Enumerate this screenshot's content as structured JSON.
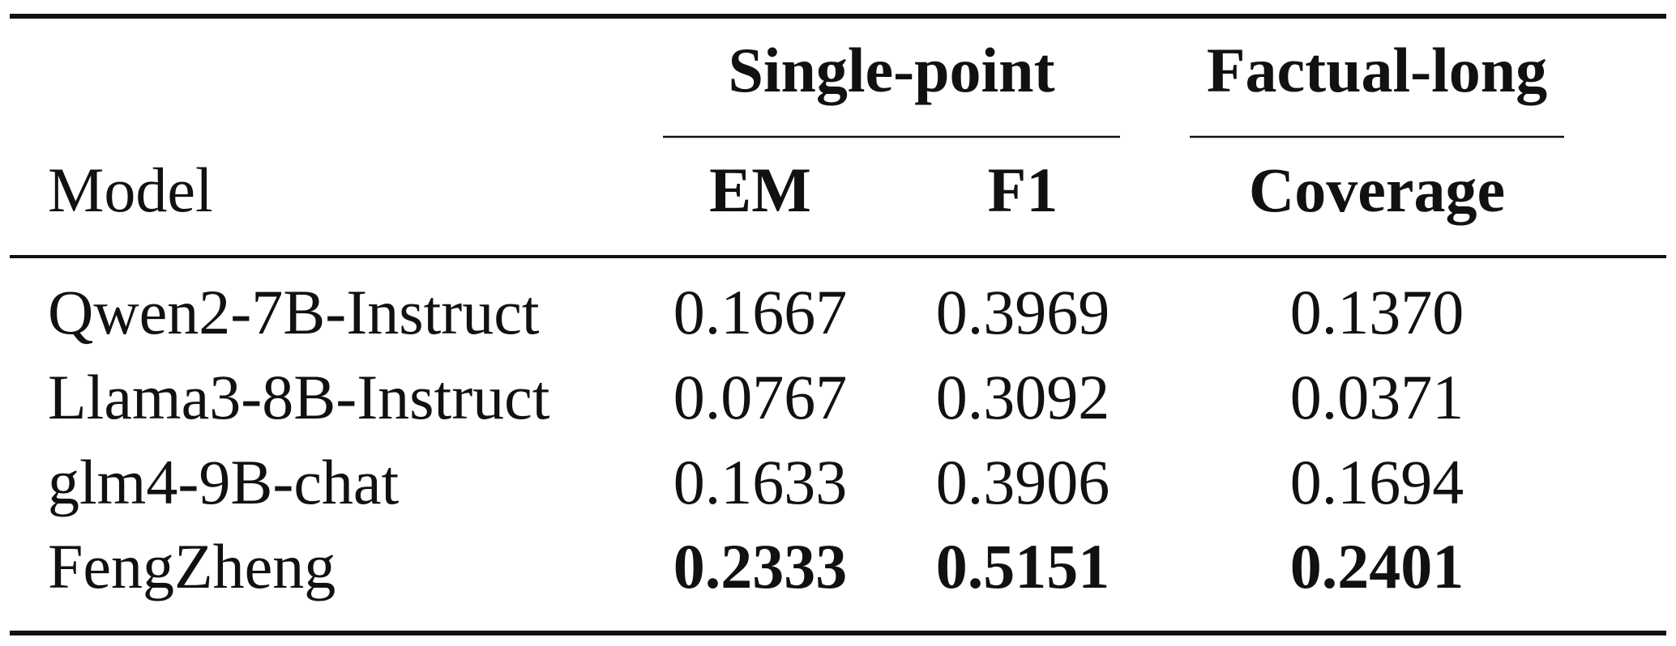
{
  "table": {
    "groups": [
      "Single-point",
      "Factual-long"
    ],
    "columns": [
      "Model",
      "EM",
      "F1",
      "Coverage"
    ],
    "rows": [
      {
        "cells": [
          "Qwen2-7B-Instruct",
          "0.1667",
          "0.3969",
          "0.1370"
        ],
        "bold": false
      },
      {
        "cells": [
          "Llama3-8B-Instruct",
          "0.0767",
          "0.3092",
          "0.0371"
        ],
        "bold": false
      },
      {
        "cells": [
          "glm4-9B-chat",
          "0.1633",
          "0.3906",
          "0.1694"
        ],
        "bold": false
      },
      {
        "cells": [
          "FengZheng",
          "0.2333",
          "0.5151",
          "0.2401"
        ],
        "bold": true
      }
    ]
  }
}
